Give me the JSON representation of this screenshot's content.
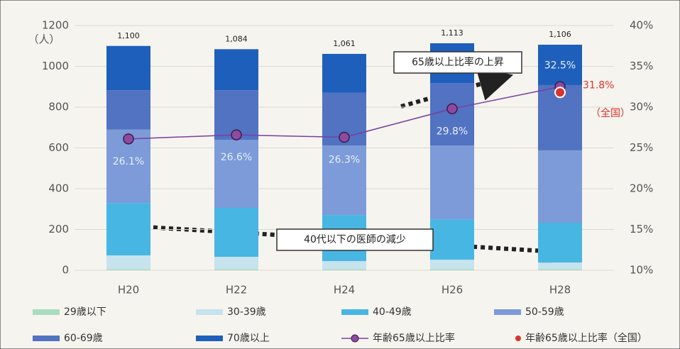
{
  "chart_data": {
    "type": "bar",
    "y_label": "（人）",
    "categories": [
      "H20",
      "H22",
      "H24",
      "H26",
      "H28"
    ],
    "series": [
      {
        "name": "29歳以下",
        "color": "#a9dcc1",
        "values": [
          5,
          5,
          5,
          5,
          5
        ]
      },
      {
        "name": "30-39歳",
        "color": "#c6e3ee",
        "values": [
          68,
          61,
          40,
          47,
          33
        ]
      },
      {
        "name": "40-49歳",
        "color": "#47b6e2",
        "values": [
          257,
          240,
          226,
          198,
          195
        ]
      },
      {
        "name": "50-59歳",
        "color": "#7c9bd8",
        "values": [
          360,
          334,
          341,
          362,
          355
        ]
      },
      {
        "name": "60-69歳",
        "color": "#5272c2",
        "values": [
          193,
          243,
          258,
          306,
          320
        ]
      },
      {
        "name": "70歳以上",
        "color": "#1e5fbb",
        "values": [
          217,
          201,
          191,
          195,
          198
        ]
      },
      {
        "name": "年齢65歳以上比率",
        "color": "#7a3fa0",
        "type": "line",
        "axis": "y2",
        "values": [
          26.1,
          26.6,
          26.3,
          29.8,
          32.5
        ],
        "value_labels": [
          "26.1%",
          "26.6%",
          "26.3%",
          "29.8%",
          "32.5%"
        ]
      },
      {
        "name": "年齢65歳以上比率（全国）",
        "color": "#d9342b",
        "type": "scatter",
        "axis": "y2",
        "values": [
          null,
          null,
          null,
          null,
          31.8
        ],
        "value_labels": [
          null,
          null,
          null,
          null,
          "31.8%"
        ]
      }
    ],
    "totals": [
      {
        "value": 1100,
        "label": "1,100"
      },
      {
        "value": 1084,
        "label": "1,084"
      },
      {
        "value": 1061,
        "label": "1,061"
      },
      {
        "value": 1113,
        "label": "1,113"
      },
      {
        "value": 1106,
        "label": "1,106"
      }
    ],
    "ylim": [
      0,
      1200
    ],
    "yticks": [
      0,
      200,
      400,
      600,
      800,
      1000,
      1200
    ],
    "y2lim": [
      10,
      40
    ],
    "y2ticks": [
      {
        "value": 10,
        "label": "10%"
      },
      {
        "value": 15,
        "label": "15%"
      },
      {
        "value": 20,
        "label": "20%"
      },
      {
        "value": 25,
        "label": "25%"
      },
      {
        "value": 30,
        "label": "30%"
      },
      {
        "value": 35,
        "label": "35%"
      },
      {
        "value": 40,
        "label": "40%"
      }
    ],
    "grid": true,
    "annotations": [
      "65歳以上比率の上昇",
      "40代以下の医師の減少",
      "（全国）"
    ]
  }
}
